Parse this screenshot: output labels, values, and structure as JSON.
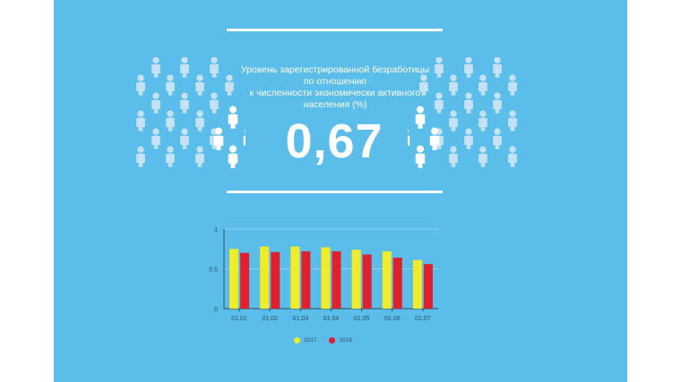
{
  "panel_color": "#5bbde9",
  "infographic": {
    "title_lines": [
      "Уровень зарегистрированной безработицы",
      "по отношению",
      "к численности экономически активного",
      "населения (%)"
    ],
    "value": "0,67"
  },
  "icons": {
    "people": "person-icon"
  },
  "chart_data": {
    "type": "bar",
    "categories": [
      "01.01",
      "01.02",
      "01.03",
      "01.04",
      "01.05",
      "01.06",
      "01.07"
    ],
    "series": [
      {
        "name": "2017",
        "color": "#f1ec29",
        "values": [
          0.75,
          0.78,
          0.78,
          0.77,
          0.74,
          0.72,
          0.61
        ]
      },
      {
        "name": "2018",
        "color": "#e0202d",
        "values": [
          0.7,
          0.71,
          0.72,
          0.72,
          0.68,
          0.64,
          0.56
        ]
      }
    ],
    "yticks": [
      "0",
      "0.5",
      "1"
    ],
    "ylim": [
      0,
      1
    ],
    "grid": true,
    "legend_position": "bottom-center",
    "title": "",
    "xlabel": "",
    "ylabel": ""
  }
}
